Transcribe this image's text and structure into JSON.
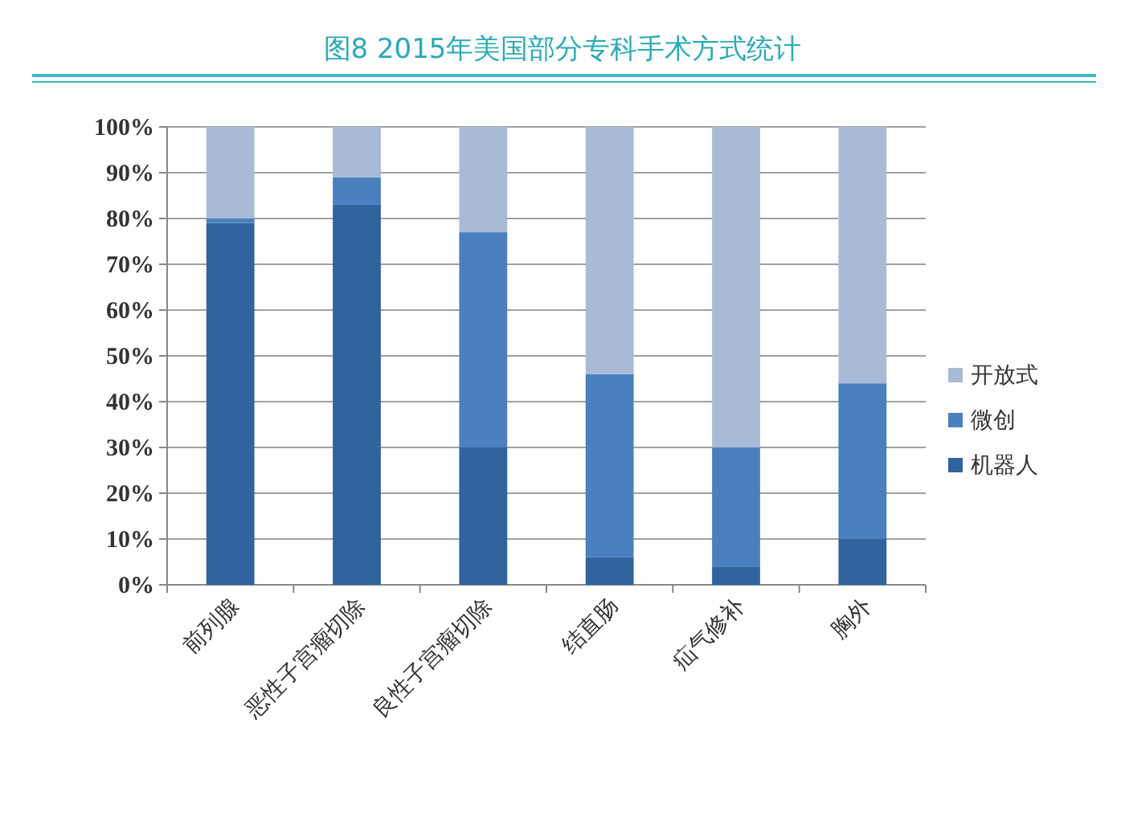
{
  "chart_data": {
    "type": "bar",
    "title": "图8  2015年美国部分专科手术方式统计",
    "categories": [
      "前列腺",
      "恶性子宫瘤切除",
      "良性子宫瘤切除",
      "结直肠",
      "疝气修补",
      "胸外"
    ],
    "stacked": true,
    "series": [
      {
        "name": "机器人",
        "color": "#31649e",
        "values": [
          79,
          83,
          30,
          6,
          4,
          10
        ]
      },
      {
        "name": "微创",
        "color": "#4a80c0",
        "values": [
          1,
          6,
          47,
          40,
          26,
          34
        ]
      },
      {
        "name": "开放式",
        "color": "#a8bad6",
        "values": [
          20,
          11,
          23,
          54,
          70,
          56
        ]
      }
    ],
    "ylim": [
      0,
      100
    ],
    "yticks": [
      {
        "value": 0,
        "label": "0%"
      },
      {
        "value": 10,
        "label": "10%"
      },
      {
        "value": 20,
        "label": "20%"
      },
      {
        "value": 30,
        "label": "30%"
      },
      {
        "value": 40,
        "label": "40%"
      },
      {
        "value": 50,
        "label": "50%"
      },
      {
        "value": 60,
        "label": "60%"
      },
      {
        "value": 70,
        "label": "70%"
      },
      {
        "value": 80,
        "label": "80%"
      },
      {
        "value": 90,
        "label": "90%"
      },
      {
        "value": 100,
        "label": "100%"
      }
    ],
    "grid": "y",
    "legend": "right"
  }
}
